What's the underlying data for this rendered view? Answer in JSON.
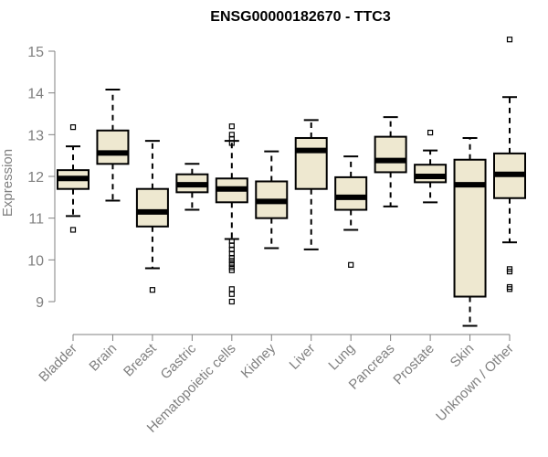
{
  "chart_data": {
    "type": "boxplot",
    "title": "ENSG00000182670 - TTC3",
    "xlabel": "",
    "ylabel": "Expression",
    "ylim": [
      8.2,
      15.4
    ],
    "yticks": [
      9,
      10,
      11,
      12,
      13,
      14,
      15
    ],
    "box_fill": "#EEE8D0",
    "categories": [
      "Bladder",
      "Brain",
      "Breast",
      "Gastric",
      "Hematopoietic cells",
      "Kidney",
      "Liver",
      "Lung",
      "Pancreas",
      "Prostate",
      "Skin",
      "Unknown / Other"
    ],
    "boxes": [
      {
        "q1": 11.7,
        "median": 11.95,
        "q3": 12.15,
        "whisker_low": 11.05,
        "whisker_high": 12.72,
        "outliers": [
          13.18,
          10.72
        ]
      },
      {
        "q1": 12.3,
        "median": 12.56,
        "q3": 13.1,
        "whisker_low": 11.42,
        "whisker_high": 14.08,
        "outliers": []
      },
      {
        "q1": 10.8,
        "median": 11.15,
        "q3": 11.7,
        "whisker_low": 9.8,
        "whisker_high": 12.85,
        "outliers": [
          9.28
        ]
      },
      {
        "q1": 11.62,
        "median": 11.8,
        "q3": 12.05,
        "whisker_low": 11.2,
        "whisker_high": 12.3,
        "outliers": []
      },
      {
        "q1": 11.38,
        "median": 11.7,
        "q3": 11.95,
        "whisker_low": 10.5,
        "whisker_high": 12.85,
        "outliers": [
          13.2,
          13.0,
          12.9,
          12.8,
          10.45,
          10.35,
          10.25,
          10.15,
          10.05,
          9.98,
          9.9,
          9.82,
          9.75,
          9.3,
          9.18,
          9.0
        ]
      },
      {
        "q1": 11.0,
        "median": 11.4,
        "q3": 11.88,
        "whisker_low": 10.28,
        "whisker_high": 12.6,
        "outliers": []
      },
      {
        "q1": 11.7,
        "median": 12.62,
        "q3": 12.92,
        "whisker_low": 10.25,
        "whisker_high": 13.35,
        "outliers": []
      },
      {
        "q1": 11.2,
        "median": 11.5,
        "q3": 11.98,
        "whisker_low": 10.72,
        "whisker_high": 12.48,
        "outliers": [
          9.88
        ]
      },
      {
        "q1": 12.1,
        "median": 12.38,
        "q3": 12.95,
        "whisker_low": 11.28,
        "whisker_high": 13.42,
        "outliers": []
      },
      {
        "q1": 11.86,
        "median": 12.0,
        "q3": 12.28,
        "whisker_low": 11.38,
        "whisker_high": 12.62,
        "outliers": [
          13.05
        ]
      },
      {
        "q1": 9.12,
        "median": 11.8,
        "q3": 12.4,
        "whisker_low": 8.42,
        "whisker_high": 12.92,
        "outliers": []
      },
      {
        "q1": 11.48,
        "median": 12.05,
        "q3": 12.55,
        "whisker_low": 10.42,
        "whisker_high": 13.9,
        "outliers": [
          15.28,
          9.78,
          9.72,
          9.35,
          9.3
        ]
      }
    ]
  }
}
